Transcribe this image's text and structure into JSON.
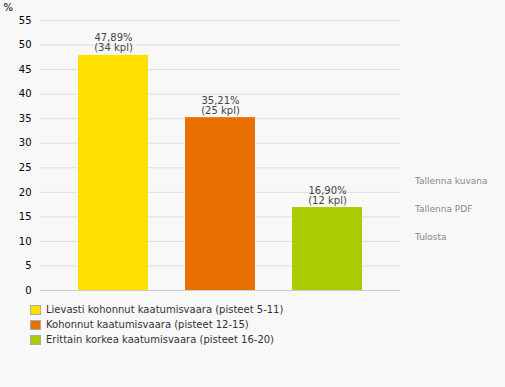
{
  "chart_data": {
    "type": "bar",
    "categories": [
      "Lievasti kohonnut kaatumisvaara (pisteet 5-11)",
      "Kohonnut kaatumisvaara (pisteet 12-15)",
      "Erittain korkea kaatumisvaara (pisteet 16-20)"
    ],
    "values": [
      47.89,
      35.21,
      16.9
    ],
    "value_labels": [
      "47,89%\n(34 kpl)",
      "35,21%\n(25 kpl)",
      "16,90%\n(12 kpl)"
    ],
    "data_labels": true,
    "colors": [
      "#FFE000",
      "#E87000",
      "#AACC00"
    ],
    "ylabel": "%",
    "ylim": [
      0,
      55
    ],
    "yticks": [
      0,
      5,
      10,
      15,
      20,
      25,
      30,
      35,
      40,
      45,
      50,
      55
    ],
    "grid": true,
    "tick_labels": "y",
    "legend": "bottom",
    "annotations": [
      "Tallenna kuvana",
      "Tallenna PDF",
      "Tulosta"
    ]
  }
}
